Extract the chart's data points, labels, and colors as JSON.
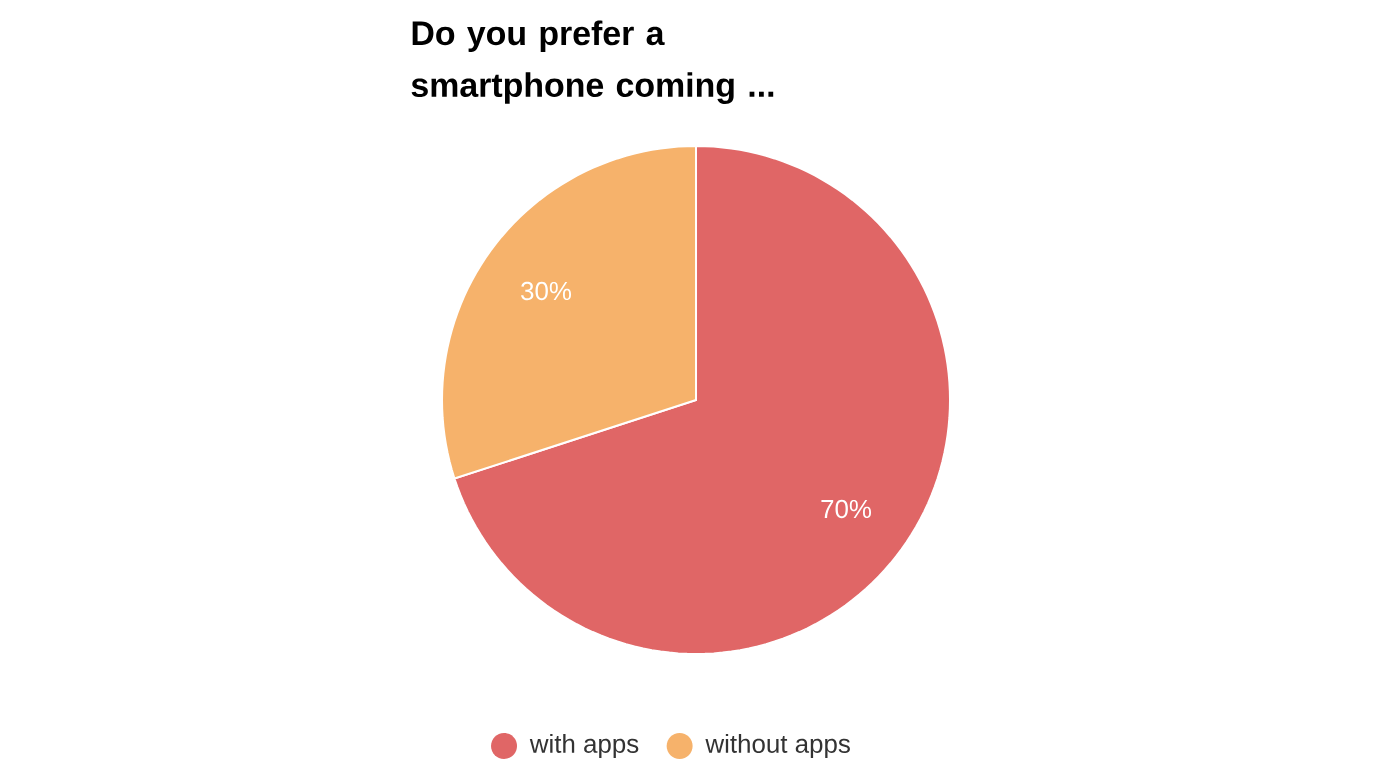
{
  "chart_data": {
    "type": "pie",
    "title": "Do you prefer a smartphone coming ...",
    "categories": [
      "with apps",
      "without apps"
    ],
    "values": [
      70,
      30
    ],
    "value_labels": [
      "70%",
      "30%"
    ],
    "colors": [
      "#e06666",
      "#f6b26b"
    ],
    "legend": "bottom"
  }
}
